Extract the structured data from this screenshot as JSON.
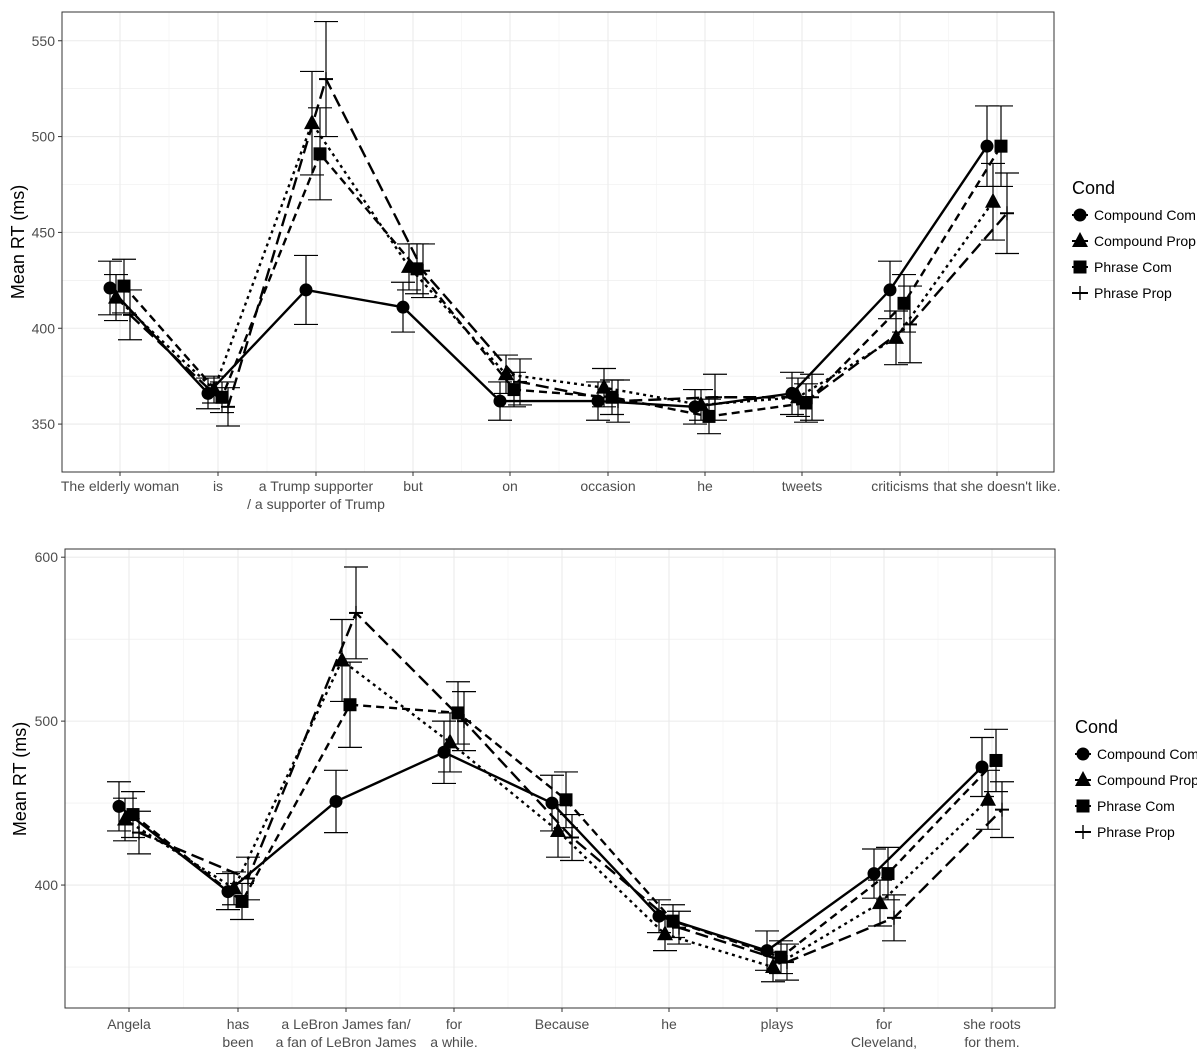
{
  "chart_data": [
    {
      "type": "line",
      "title": "",
      "xlabel": "",
      "ylabel": "Mean RT (ms)",
      "ylim": [
        325,
        565
      ],
      "yticks": [
        350,
        400,
        450,
        500,
        550
      ],
      "grid": true,
      "legend_title": "Cond",
      "legend_position": "right",
      "categories": [
        [
          "The elderly woman"
        ],
        [
          "is"
        ],
        [
          "a Trump supporter",
          "/ a supporter of Trump"
        ],
        [
          "but"
        ],
        [
          "on"
        ],
        [
          "occasion"
        ],
        [
          "he"
        ],
        [
          "tweets"
        ],
        [
          "criticisms"
        ],
        [
          "that she doesn't like."
        ]
      ],
      "series": [
        {
          "name": "Compound Com",
          "marker": "circle",
          "line": "solid",
          "values": [
            421,
            366,
            420,
            411,
            362,
            362,
            359,
            366,
            420,
            495
          ],
          "err": [
            14,
            8,
            18,
            13,
            10,
            10,
            9,
            11,
            15,
            21
          ]
        },
        {
          "name": "Compound Prop",
          "marker": "triangle",
          "line": "dotted",
          "values": [
            416,
            368,
            507,
            432,
            376,
            369,
            360,
            364,
            395,
            466
          ],
          "err": [
            12,
            7,
            27,
            12,
            10,
            10,
            8,
            10,
            14,
            20
          ]
        },
        {
          "name": "Phrase Com",
          "marker": "square",
          "line": "dashed",
          "values": [
            422,
            364,
            491,
            431,
            368,
            364,
            354,
            361,
            413,
            495
          ],
          "err": [
            14,
            8,
            24,
            13,
            9,
            9,
            9,
            10,
            15,
            21
          ]
        },
        {
          "name": "Phrase Prop",
          "marker": "cross",
          "line": "longdash",
          "values": [
            407,
            359,
            530,
            430,
            372,
            362,
            364,
            364,
            402,
            460
          ],
          "err": [
            13,
            10,
            30,
            14,
            12,
            11,
            12,
            12,
            20,
            21
          ]
        }
      ]
    },
    {
      "type": "line",
      "title": "",
      "xlabel": "",
      "ylabel": "Mean RT (ms)",
      "ylim": [
        325,
        605
      ],
      "yticks": [
        400,
        500,
        600
      ],
      "grid": true,
      "legend_title": "Cond",
      "legend_position": "right",
      "categories": [
        [
          "Angela"
        ],
        [
          "has",
          "been"
        ],
        [
          "a LeBron James fan/",
          "a fan of LeBron James"
        ],
        [
          "for",
          "a while."
        ],
        [
          "Because"
        ],
        [
          "he"
        ],
        [
          "plays"
        ],
        [
          "for",
          "Cleveland,"
        ],
        [
          "she roots",
          "for them."
        ]
      ],
      "series": [
        {
          "name": "Compound Com",
          "marker": "circle",
          "line": "solid",
          "values": [
            448,
            396,
            451,
            481,
            450,
            381,
            360,
            407,
            472
          ],
          "err": [
            15,
            11,
            19,
            19,
            17,
            10,
            12,
            15,
            18
          ]
        },
        {
          "name": "Compound Prop",
          "marker": "triangle",
          "line": "dotted",
          "values": [
            440,
            398,
            537,
            487,
            433,
            370,
            350,
            389,
            452
          ],
          "err": [
            13,
            10,
            25,
            18,
            16,
            10,
            9,
            14,
            18
          ]
        },
        {
          "name": "Phrase Com",
          "marker": "square",
          "line": "dashed",
          "values": [
            443,
            390,
            510,
            505,
            452,
            378,
            356,
            407,
            476
          ],
          "err": [
            14,
            11,
            26,
            19,
            17,
            10,
            10,
            16,
            19
          ]
        },
        {
          "name": "Phrase Prop",
          "marker": "cross",
          "line": "longdash",
          "values": [
            432,
            404,
            566,
            500,
            429,
            374,
            353,
            380,
            446
          ],
          "err": [
            13,
            13,
            28,
            18,
            14,
            10,
            11,
            14,
            17
          ]
        }
      ]
    }
  ]
}
